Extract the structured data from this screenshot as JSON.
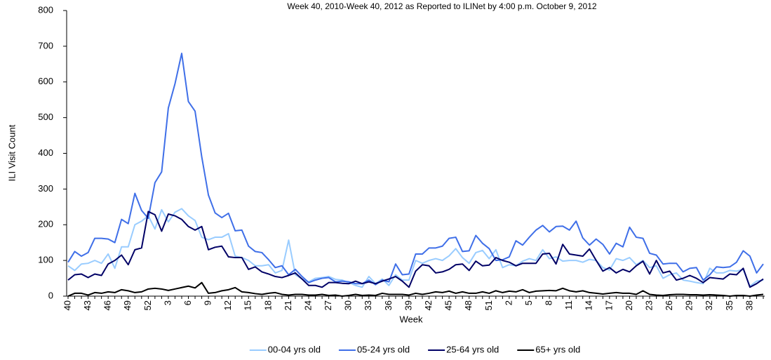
{
  "chart_data": {
    "type": "line",
    "title": "Week 40, 2010-Week 40, 2012 as Reported to ILINet by 4:00 p.m. October 9, 2012",
    "xlabel": "Week",
    "ylabel": "ILI Visit Count",
    "categories": [
      "40",
      null,
      null,
      "43",
      null,
      null,
      "46",
      null,
      null,
      "49",
      null,
      null,
      "52",
      null,
      null,
      "3",
      null,
      null,
      "6",
      null,
      null,
      "9",
      null,
      null,
      "12",
      null,
      null,
      "15",
      null,
      null,
      "18",
      null,
      null,
      "21",
      null,
      null,
      "24",
      null,
      null,
      "27",
      null,
      null,
      "30",
      null,
      null,
      "33",
      null,
      null,
      "36",
      null,
      null,
      "39",
      null,
      null,
      "42",
      null,
      null,
      "45",
      null,
      null,
      "48",
      null,
      null,
      "51",
      null,
      null,
      "2",
      null,
      null,
      "5",
      null,
      null,
      "8",
      null,
      null,
      "11",
      null,
      null,
      "14",
      null,
      null,
      "17",
      null,
      null,
      "20",
      null,
      null,
      "23",
      null,
      null,
      "26",
      null,
      null,
      "29",
      null,
      null,
      "32",
      null,
      null,
      "35",
      null,
      null,
      "38",
      null,
      null
    ],
    "ylim": [
      0,
      800
    ],
    "yticks": [
      0,
      100,
      200,
      300,
      400,
      500,
      600,
      700,
      800
    ],
    "legend": "bottom",
    "series": [
      {
        "name": "00-04 yrs old",
        "color": "#99ccff",
        "values": [
          85,
          72,
          90,
          92,
          100,
          92,
          118,
          78,
          138,
          138,
          200,
          210,
          225,
          188,
          242,
          208,
          235,
          245,
          225,
          212,
          165,
          158,
          165,
          165,
          175,
          112,
          108,
          100,
          85,
          85,
          88,
          65,
          72,
          157,
          60,
          48,
          40,
          50,
          52,
          55,
          47,
          45,
          38,
          30,
          25,
          55,
          35,
          48,
          30,
          60,
          45,
          45,
          100,
          92,
          100,
          105,
          100,
          113,
          133,
          108,
          92,
          122,
          128,
          105,
          130,
          80,
          88,
          85,
          98,
          105,
          100,
          130,
          105,
          110,
          98,
          100,
          100,
          95,
          103,
          100,
          80,
          73,
          105,
          100,
          108,
          88,
          100,
          80,
          85,
          50,
          60,
          65,
          45,
          42,
          38,
          35,
          78,
          65,
          65,
          72,
          70,
          75,
          28,
          42,
          45
        ]
      },
      {
        "name": "05-24 yrs old",
        "color": "#3f6fe8",
        "values": [
          95,
          125,
          112,
          122,
          162,
          162,
          160,
          150,
          215,
          203,
          288,
          240,
          218,
          318,
          348,
          527,
          595,
          680,
          545,
          518,
          390,
          283,
          233,
          220,
          232,
          183,
          185,
          140,
          125,
          122,
          102,
          80,
          85,
          60,
          75,
          55,
          38,
          45,
          50,
          52,
          40,
          42,
          40,
          35,
          35,
          45,
          32,
          45,
          40,
          90,
          60,
          62,
          118,
          118,
          135,
          135,
          140,
          162,
          165,
          125,
          127,
          170,
          148,
          133,
          100,
          102,
          110,
          155,
          143,
          165,
          185,
          198,
          180,
          195,
          196,
          185,
          210,
          163,
          143,
          160,
          145,
          118,
          148,
          138,
          193,
          165,
          162,
          120,
          115,
          90,
          92,
          92,
          68,
          78,
          80,
          45,
          60,
          82,
          80,
          82,
          95,
          127,
          112,
          65,
          90
        ]
      },
      {
        "name": "25-64 yrs old",
        "color": "#000066",
        "values": [
          45,
          60,
          62,
          52,
          62,
          58,
          90,
          100,
          115,
          88,
          130,
          135,
          237,
          228,
          182,
          230,
          225,
          215,
          195,
          185,
          195,
          130,
          137,
          140,
          110,
          108,
          108,
          75,
          82,
          68,
          62,
          55,
          52,
          58,
          65,
          48,
          30,
          30,
          25,
          38,
          38,
          36,
          35,
          42,
          35,
          40,
          35,
          42,
          48,
          55,
          42,
          25,
          70,
          88,
          85,
          65,
          68,
          75,
          88,
          90,
          72,
          98,
          85,
          87,
          108,
          100,
          95,
          85,
          92,
          92,
          92,
          118,
          120,
          90,
          145,
          118,
          115,
          112,
          132,
          100,
          70,
          80,
          65,
          75,
          68,
          85,
          98,
          62,
          100,
          65,
          70,
          45,
          50,
          58,
          50,
          38,
          52,
          50,
          48,
          62,
          60,
          78,
          25,
          35,
          48
        ]
      },
      {
        "name": "65+ yrs old",
        "color": "#000000",
        "values": [
          0,
          8,
          8,
          3,
          10,
          8,
          12,
          10,
          18,
          15,
          10,
          12,
          20,
          22,
          20,
          16,
          20,
          24,
          28,
          23,
          38,
          8,
          10,
          15,
          18,
          24,
          12,
          10,
          7,
          5,
          8,
          10,
          5,
          3,
          5,
          5,
          3,
          3,
          5,
          2,
          3,
          0,
          2,
          5,
          2,
          3,
          2,
          8,
          5,
          5,
          5,
          3,
          8,
          5,
          8,
          12,
          10,
          14,
          8,
          12,
          8,
          8,
          12,
          8,
          15,
          10,
          14,
          12,
          18,
          10,
          14,
          15,
          16,
          15,
          22,
          15,
          12,
          15,
          10,
          8,
          6,
          8,
          10,
          8,
          8,
          5,
          15,
          5,
          3,
          2,
          4,
          5,
          5,
          4,
          4,
          3,
          4,
          3,
          2,
          0,
          2,
          2,
          0,
          3,
          5
        ]
      }
    ]
  }
}
